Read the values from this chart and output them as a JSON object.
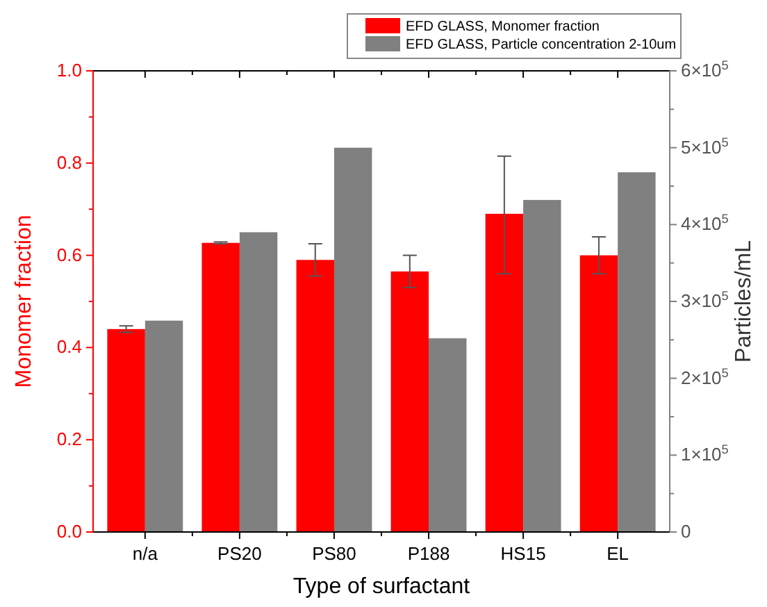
{
  "chart_data": {
    "type": "bar",
    "xlabel": "Type of surfactant",
    "ylabel": "Monomer fraction",
    "y2label": "Particles/mL",
    "categories": [
      "n/a",
      "PS20",
      "PS80",
      "P188",
      "HS15",
      "EL"
    ],
    "series": [
      {
        "name": "EFD GLASS, Monomer fraction",
        "color": "#ff0000",
        "values": [
          0.44,
          0.627,
          0.59,
          0.565,
          0.69,
          0.6
        ],
        "errors": [
          0.007,
          0.002,
          0.035,
          0.035,
          [
            0.56,
            0.815
          ],
          0.04
        ]
      },
      {
        "name": "EFD GLASS, Particle concentration 2-10um",
        "color": "#808080",
        "axis": "y2",
        "values": [
          275000,
          390000,
          500000,
          252000,
          432000,
          468000
        ]
      }
    ],
    "ylim": [
      0,
      1
    ],
    "yticks": [
      {
        "value": 0,
        "label": "0.0"
      },
      {
        "value": 0.1,
        "label": null
      },
      {
        "value": 0.2,
        "label": "0.2"
      },
      {
        "value": 0.3,
        "label": null
      },
      {
        "value": 0.4,
        "label": "0.4"
      },
      {
        "value": 0.5,
        "label": null
      },
      {
        "value": 0.6,
        "label": "0.6"
      },
      {
        "value": 0.7,
        "label": null
      },
      {
        "value": 0.8,
        "label": "0.8"
      },
      {
        "value": 0.9,
        "label": null
      },
      {
        "value": 1,
        "label": "1.0"
      }
    ],
    "y2lim": [
      0,
      600000
    ],
    "y2ticks": [
      0,
      {
        "value": 50000,
        "label": null
      },
      {
        "value": 100000,
        "label": "1×10$^{5}$"
      },
      {
        "value": 150000,
        "label": null
      },
      {
        "value": 200000,
        "label": "2×10$^{5}$"
      },
      {
        "value": 250000,
        "label": null
      },
      {
        "value": 300000,
        "label": "3×10$^{5}$"
      },
      {
        "value": 350000,
        "label": null
      },
      {
        "value": 400000,
        "label": "4×10$^{5}$"
      },
      {
        "value": 450000,
        "label": null
      },
      {
        "value": 500000,
        "label": "5×10$^{5}$"
      },
      {
        "value": 550000,
        "label": null
      },
      {
        "value": 600000,
        "label": "6×10$^{5}$"
      }
    ],
    "legend": "top right",
    "grid": false
  }
}
